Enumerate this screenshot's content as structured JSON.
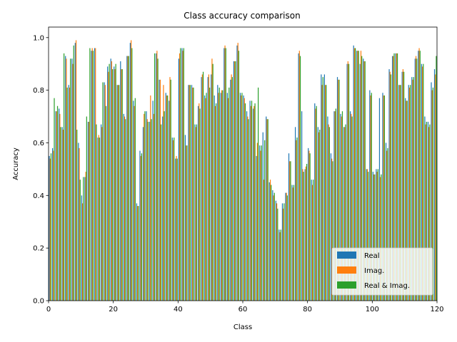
{
  "chart_data": {
    "type": "bar",
    "title": "Class accuracy comparison",
    "xlabel": "Class",
    "ylabel": "Accuracy",
    "xlim": [
      0,
      120
    ],
    "ylim": [
      0,
      1.04
    ],
    "xticks": [
      0,
      20,
      40,
      60,
      80,
      100,
      120
    ],
    "yticks": [
      0.0,
      0.2,
      0.4,
      0.6,
      0.8,
      1.0
    ],
    "grid": false,
    "legend_position": "lower-right",
    "categories_count": 120,
    "series": [
      {
        "name": "Real",
        "color": "#1f77b4",
        "values": [
          0.55,
          0.58,
          0.72,
          0.73,
          0.66,
          0.93,
          0.82,
          0.92,
          0.98,
          0.6,
          0.4,
          0.47,
          0.68,
          0.95,
          0.96,
          0.62,
          0.67,
          0.83,
          0.89,
          0.92,
          0.89,
          0.82,
          0.91,
          0.71,
          0.93,
          0.98,
          0.76,
          0.37,
          0.57,
          0.66,
          0.72,
          0.68,
          0.76,
          0.94,
          0.84,
          0.7,
          0.79,
          0.76,
          0.62,
          0.54,
          0.92,
          0.96,
          0.63,
          0.82,
          0.82,
          0.67,
          0.74,
          0.85,
          0.78,
          0.85,
          0.86,
          0.78,
          0.82,
          0.79,
          0.96,
          0.79,
          0.84,
          0.91,
          0.97,
          0.79,
          0.78,
          0.72,
          0.76,
          0.73,
          0.55,
          0.59,
          0.64,
          0.7,
          0.45,
          0.42,
          0.38,
          0.27,
          0.37,
          0.41,
          0.56,
          0.44,
          0.66,
          0.94,
          0.72,
          0.5,
          0.58,
          0.46,
          0.75,
          0.66,
          0.86,
          0.86,
          0.7,
          0.56,
          0.72,
          0.85,
          0.71,
          0.66,
          0.9,
          0.72,
          0.97,
          0.95,
          0.9,
          0.92,
          0.5,
          0.8,
          0.49,
          0.5,
          0.77,
          0.79,
          0.6,
          0.88,
          0.93,
          0.94,
          0.82,
          0.87,
          0.77,
          0.82,
          0.85,
          0.92,
          0.95,
          0.9,
          0.7,
          0.68,
          0.83,
          0.88
        ]
      },
      {
        "name": "Imag.",
        "color": "#ff7f0e",
        "values": [
          0.54,
          0.57,
          0.72,
          0.71,
          0.65,
          0.92,
          0.81,
          0.9,
          0.99,
          0.58,
          0.37,
          0.49,
          0.68,
          0.96,
          0.96,
          0.63,
          0.66,
          0.82,
          0.87,
          0.91,
          0.88,
          0.82,
          0.88,
          0.7,
          0.93,
          0.99,
          0.74,
          0.36,
          0.55,
          0.71,
          0.69,
          0.78,
          0.71,
          0.95,
          0.84,
          0.82,
          0.78,
          0.85,
          0.61,
          0.55,
          0.94,
          0.95,
          0.59,
          0.82,
          0.81,
          0.66,
          0.75,
          0.86,
          0.77,
          0.86,
          0.92,
          0.74,
          0.79,
          0.8,
          0.97,
          0.77,
          0.86,
          0.91,
          0.98,
          0.78,
          0.77,
          0.7,
          0.74,
          0.74,
          0.6,
          0.57,
          0.46,
          0.69,
          0.46,
          0.4,
          0.37,
          0.26,
          0.35,
          0.41,
          0.53,
          0.43,
          0.61,
          0.95,
          0.5,
          0.51,
          0.57,
          0.44,
          0.73,
          0.64,
          0.82,
          0.82,
          0.67,
          0.54,
          0.72,
          0.84,
          0.7,
          0.66,
          0.91,
          0.71,
          0.96,
          0.95,
          0.95,
          0.91,
          0.5,
          0.78,
          0.48,
          0.49,
          0.47,
          0.78,
          0.57,
          0.87,
          0.93,
          0.94,
          0.82,
          0.88,
          0.76,
          0.81,
          0.84,
          0.93,
          0.96,
          0.89,
          0.67,
          0.66,
          0.8,
          0.86
        ]
      },
      {
        "name": "Real & Imag.",
        "color": "#2ca02c",
        "values": [
          0.56,
          0.77,
          0.74,
          0.66,
          0.94,
          0.81,
          0.92,
          0.97,
          0.65,
          0.46,
          0.47,
          0.7,
          0.96,
          0.95,
          0.67,
          0.62,
          0.83,
          0.74,
          0.9,
          0.88,
          0.9,
          0.82,
          0.88,
          0.69,
          0.93,
          0.96,
          0.77,
          0.36,
          0.56,
          0.72,
          0.68,
          0.69,
          0.94,
          0.92,
          0.67,
          0.72,
          0.78,
          0.84,
          0.62,
          0.54,
          0.96,
          0.96,
          0.59,
          0.82,
          0.81,
          0.67,
          0.73,
          0.87,
          0.79,
          0.81,
          0.9,
          0.75,
          0.81,
          0.8,
          0.96,
          0.81,
          0.85,
          0.91,
          0.95,
          0.79,
          0.75,
          0.69,
          0.76,
          0.75,
          0.81,
          0.59,
          0.61,
          0.69,
          0.44,
          0.41,
          0.35,
          0.27,
          0.37,
          0.4,
          0.53,
          0.44,
          0.62,
          0.93,
          0.49,
          0.52,
          0.56,
          0.46,
          0.74,
          0.65,
          0.85,
          0.82,
          0.66,
          0.53,
          0.73,
          0.84,
          0.72,
          0.67,
          0.9,
          0.7,
          0.96,
          0.95,
          0.93,
          0.91,
          0.49,
          0.79,
          0.48,
          0.5,
          0.48,
          0.78,
          0.58,
          0.86,
          0.94,
          0.94,
          0.82,
          0.87,
          0.76,
          0.82,
          0.85,
          0.92,
          0.95,
          0.9,
          0.68,
          0.67,
          0.81,
          0.93
        ]
      }
    ]
  }
}
